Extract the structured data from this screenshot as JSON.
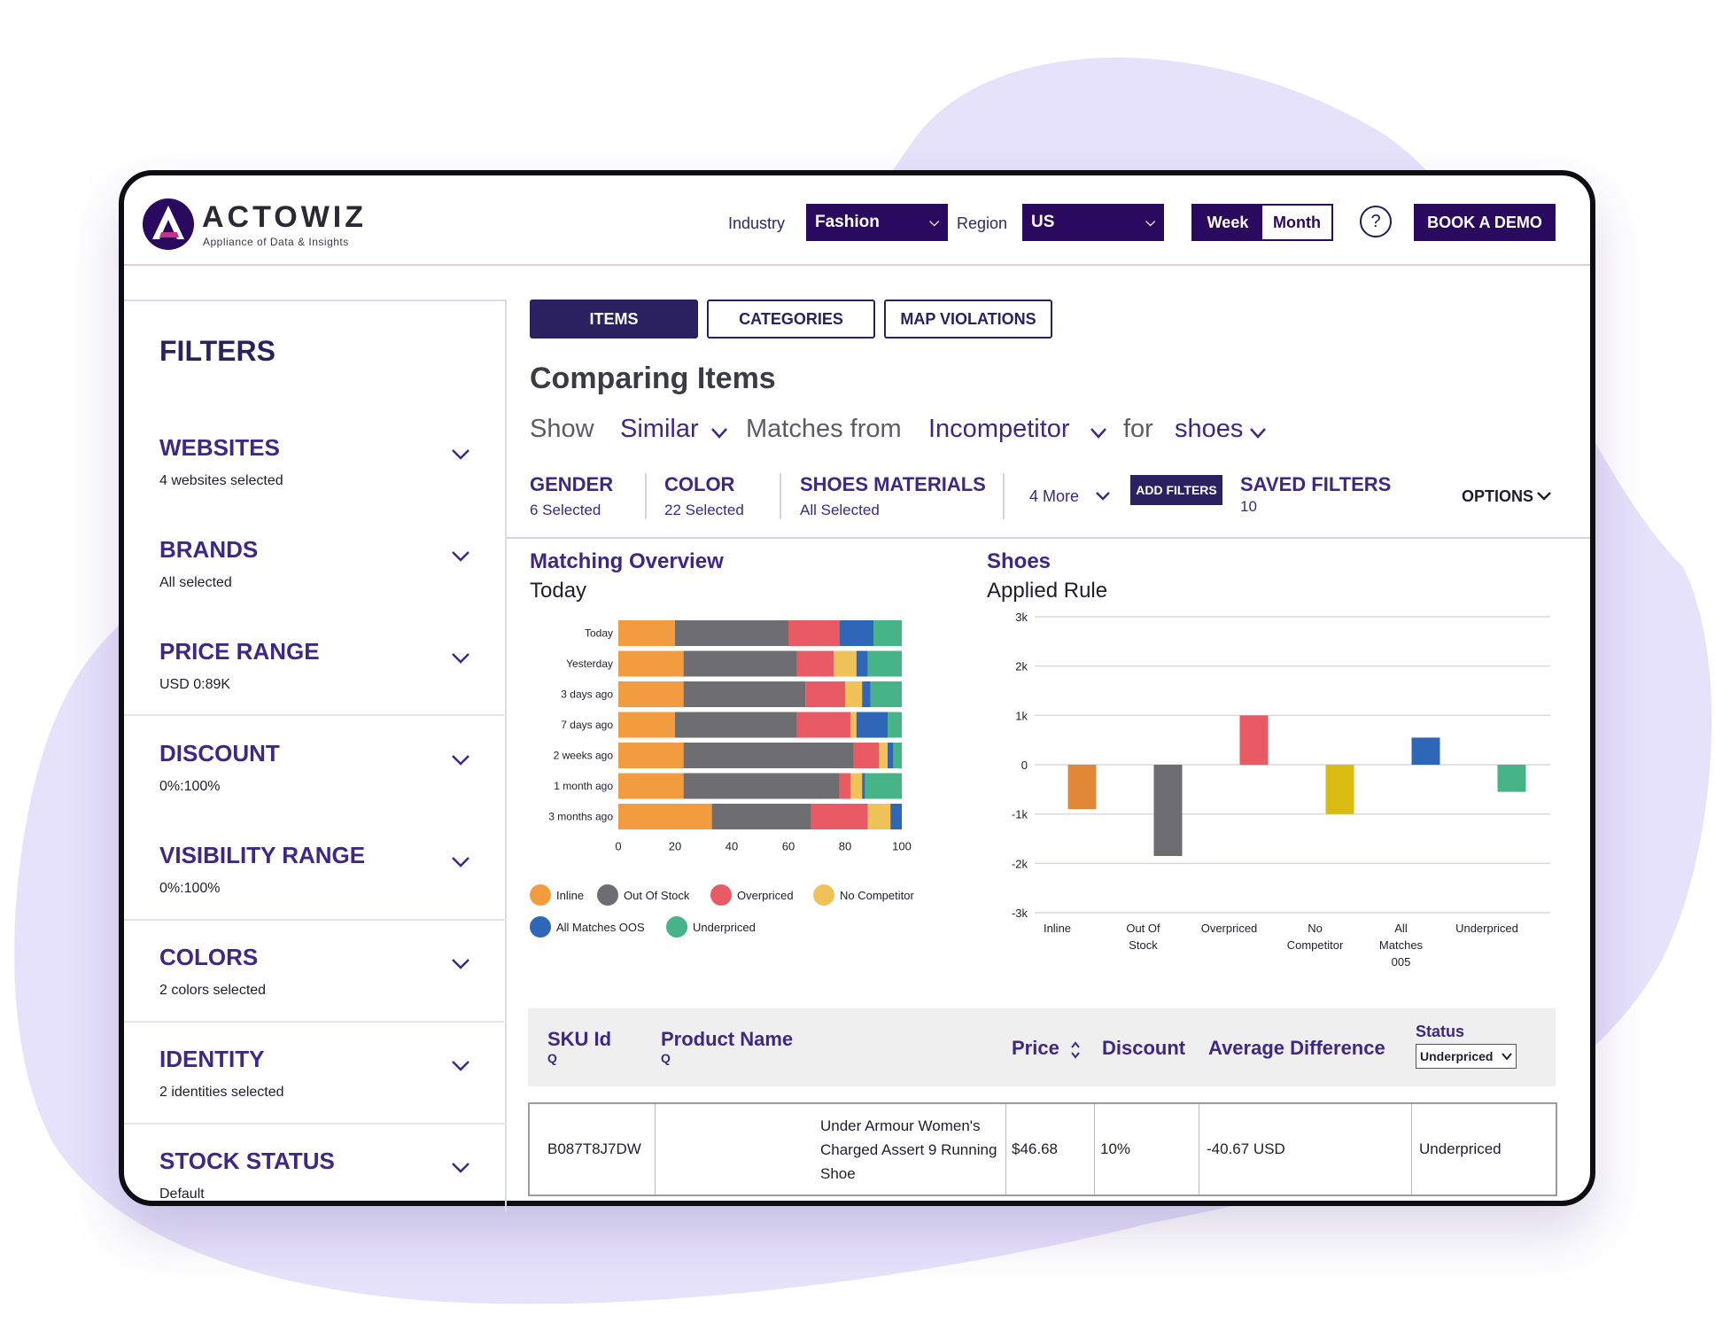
{
  "brand": {
    "name": "ACTOWIZ",
    "tagline": "Appliance of Data & Insights"
  },
  "header": {
    "industry_label": "Industry",
    "industry_value": "Fashion",
    "region_label": "Region",
    "region_value": "US",
    "week_label": "Week",
    "month_label": "Month",
    "help_label": "?",
    "book_demo_label": "BOOK A DEMO"
  },
  "sidebar": {
    "title": "FILTERS",
    "items": [
      {
        "title": "WEBSITES",
        "subtitle": "4 websites selected"
      },
      {
        "title": "BRANDS",
        "subtitle": "All selected"
      },
      {
        "title": "PRICE RANGE",
        "subtitle": "USD 0:89K"
      },
      {
        "title": "DISCOUNT",
        "subtitle": "0%:100%"
      },
      {
        "title": "VISIBILITY RANGE",
        "subtitle": "0%:100%"
      },
      {
        "title": "COLORS",
        "subtitle": "2 colors selected"
      },
      {
        "title": "IDENTITY",
        "subtitle": "2 identities selected"
      },
      {
        "title": "STOCK STATUS",
        "subtitle": "Default"
      }
    ]
  },
  "tabs": [
    {
      "label": "ITEMS",
      "active": true
    },
    {
      "label": "CATEGORIES",
      "active": false
    },
    {
      "label": "MAP VIOLATIONS",
      "active": false
    }
  ],
  "main": {
    "title": "Comparing Items",
    "show_label": "Show",
    "show_value": "Similar",
    "matches_label": "Matches from",
    "matches_value": "Incompetitor",
    "for_label": "for",
    "for_value": "shoes"
  },
  "filter_bar": {
    "gender_title": "GENDER",
    "gender_value": "6 Selected",
    "color_title": "COLOR",
    "color_value": "22 Selected",
    "materials_title": "SHOES MATERIALS",
    "materials_value": "All Selected",
    "more_label": "4 More",
    "add_filters_label": "ADD FILTERS",
    "saved_title": "SAVED FILTERS",
    "saved_value": "10",
    "options_label": "OPTIONS"
  },
  "colors": {
    "primary": "#2a0a5e",
    "accent": "#3d2883",
    "inline": "#f39c3f",
    "out_of_stock": "#6e6e72",
    "overpriced": "#e85a64",
    "no_competitor": "#f0c35a",
    "all_matches_oos": "#2e67b8",
    "underpriced": "#46b486"
  },
  "chart_data": [
    {
      "type": "bar",
      "orientation": "horizontal",
      "stacked": true,
      "title": "Matching Overview",
      "subtitle": "Today",
      "categories": [
        "Today",
        "Yesterday",
        "3 days ago",
        "7 days ago",
        "2 weeks ago",
        "1 month ago",
        "3 months ago"
      ],
      "xlim": [
        0,
        100
      ],
      "xticks": [
        0,
        20,
        40,
        60,
        80,
        100
      ],
      "series": [
        {
          "name": "Inline",
          "color": "#f39c3f",
          "values": [
            20,
            23,
            23,
            20,
            23,
            23,
            33
          ]
        },
        {
          "name": "Out Of Stock",
          "color": "#6e6e72",
          "values": [
            40,
            40,
            43,
            43,
            60,
            55,
            35
          ]
        },
        {
          "name": "Overpriced",
          "color": "#e85a64",
          "values": [
            18,
            13,
            14,
            19,
            9,
            4,
            20
          ]
        },
        {
          "name": "No Competitor",
          "color": "#f0c35a",
          "values": [
            0,
            8,
            6,
            2,
            3,
            4,
            8
          ]
        },
        {
          "name": "All Matches OOS",
          "color": "#2e67b8",
          "values": [
            12,
            4,
            3,
            11,
            2,
            1,
            7
          ]
        },
        {
          "name": "Underpriced",
          "color": "#46b486",
          "values": [
            12,
            14,
            15,
            7,
            3,
            13,
            0
          ]
        }
      ],
      "legend_position": "bottom"
    },
    {
      "type": "bar",
      "title": "Shoes",
      "subtitle": "Applied Rule",
      "categories": [
        "Inline",
        "Out Of Stock",
        "Overpriced",
        "No Competitor",
        "All Matches 005",
        "Underpriced"
      ],
      "values": [
        -900,
        -1850,
        1000,
        -1000,
        550,
        -550
      ],
      "colors": [
        "#e08838",
        "#6e6e72",
        "#e85a64",
        "#d9bb12",
        "#2e67b8",
        "#46b486"
      ],
      "ylim": [
        -3000,
        3000
      ],
      "yticks": [
        "3k",
        "2k",
        "1k",
        "0",
        "-1k",
        "-2k",
        "-3k"
      ],
      "grid": true
    }
  ],
  "table": {
    "columns": {
      "sku": "SKU Id",
      "sku_search": "Q",
      "product": "Product Name",
      "product_search": "Q",
      "price": "Price",
      "discount": "Discount",
      "avg_diff": "Average Difference",
      "status": "Status",
      "status_filter": "Underpriced"
    },
    "rows": [
      {
        "sku": "B087T8J7DW",
        "product": "Under Armour Women's Charged Assert 9 Running Shoe",
        "price": "$46.68",
        "discount": "10%",
        "avg_diff": "-40.67 USD",
        "status": "Underpriced"
      }
    ]
  }
}
